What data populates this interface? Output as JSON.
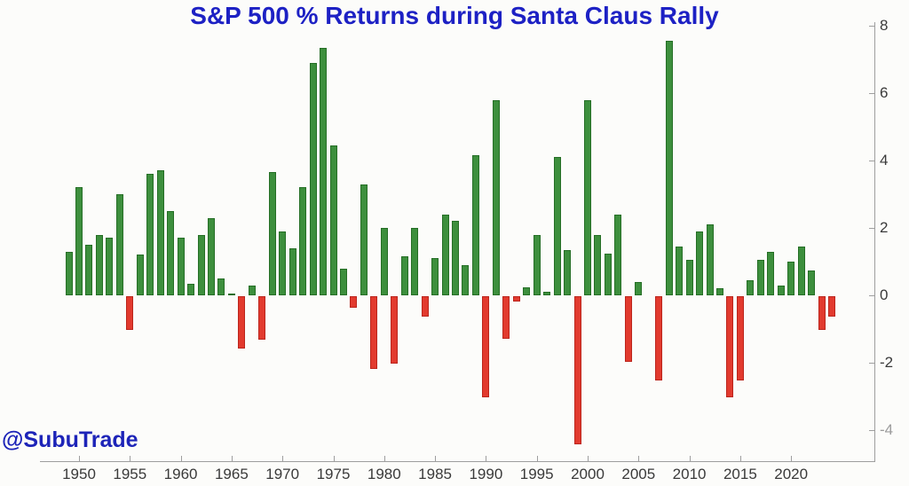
{
  "watermark": "@SubuTrade",
  "colors": {
    "background": "#fcfcfa",
    "title": "#1d21c4",
    "watermark": "#1d24b8",
    "positive": "#3d8f3d",
    "positive_border": "#256e25",
    "negative": "#e23a2e",
    "negative_border": "#bb251c",
    "axis_text": "#3a3a3a",
    "axis_text_muted": "#9b9b9b",
    "spine": "#9e9e9e"
  },
  "chart_data": {
    "type": "bar",
    "title": "S&P 500 % Returns during Santa Claus Rally",
    "xlabel": "",
    "ylabel": "",
    "grid": false,
    "legend": null,
    "axis_side": "right",
    "ylim": [
      -4.9,
      8.1
    ],
    "x_tick_labels": [
      "1950",
      "1955",
      "1960",
      "1965",
      "1970",
      "1975",
      "1980",
      "1985",
      "1990",
      "1995",
      "2000",
      "2005",
      "2010",
      "2015",
      "2020"
    ],
    "y_ticks": [
      {
        "label": "8",
        "value": 8,
        "muted": false
      },
      {
        "label": "6",
        "value": 6,
        "muted": false
      },
      {
        "label": "4",
        "value": 4,
        "muted": false
      },
      {
        "label": "2",
        "value": 2,
        "muted": false
      },
      {
        "label": "0",
        "value": 0,
        "muted": false
      },
      {
        "label": "-2",
        "value": -2,
        "muted": false
      },
      {
        "label": "-4",
        "value": -4,
        "muted": true
      }
    ],
    "years": [
      1949,
      1950,
      1951,
      1952,
      1953,
      1954,
      1955,
      1956,
      1957,
      1958,
      1959,
      1960,
      1961,
      1962,
      1963,
      1964,
      1965,
      1966,
      1967,
      1968,
      1969,
      1970,
      1971,
      1972,
      1973,
      1974,
      1975,
      1976,
      1977,
      1978,
      1979,
      1980,
      1981,
      1982,
      1983,
      1984,
      1985,
      1986,
      1987,
      1988,
      1989,
      1990,
      1991,
      1992,
      1993,
      1994,
      1995,
      1996,
      1997,
      1998,
      1999,
      2000,
      2001,
      2002,
      2003,
      2004,
      2005,
      2006,
      2007,
      2008,
      2009,
      2010,
      2011,
      2012,
      2013,
      2014,
      2015,
      2016,
      2017,
      2018,
      2019,
      2020,
      2021,
      2022,
      2023,
      2024
    ],
    "values": [
      1.3,
      3.2,
      1.5,
      1.8,
      1.7,
      3.0,
      -1.0,
      1.2,
      3.6,
      3.7,
      2.5,
      1.7,
      0.35,
      1.8,
      2.3,
      0.5,
      0.05,
      -1.55,
      0.3,
      -1.3,
      3.65,
      1.9,
      1.4,
      3.2,
      6.9,
      7.35,
      4.45,
      0.8,
      -0.35,
      3.3,
      -2.15,
      2.0,
      -2.0,
      1.15,
      2.0,
      -0.6,
      1.1,
      2.4,
      2.2,
      0.9,
      4.15,
      -3.0,
      5.8,
      -1.25,
      -0.15,
      0.25,
      1.8,
      0.1,
      4.1,
      1.35,
      -4.4,
      5.8,
      1.8,
      1.25,
      2.4,
      -1.95,
      0.4,
      0.0,
      -2.5,
      7.55,
      1.45,
      1.05,
      1.9,
      2.1,
      0.2,
      -3.0,
      -2.5,
      0.45,
      1.05,
      1.3,
      0.3,
      1.0,
      1.45,
      0.75,
      -1.0,
      -0.6
    ]
  }
}
